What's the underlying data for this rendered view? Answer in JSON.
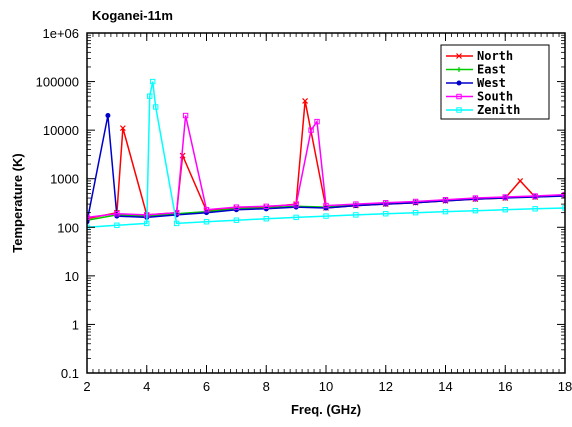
{
  "chart_data": {
    "type": "line",
    "title": "Koganei-11m",
    "xlabel": "Freq. (GHz)",
    "ylabel": "Temperature (K)",
    "xlim": [
      2,
      18
    ],
    "ylim": [
      0.1,
      1000000
    ],
    "yscale": "log",
    "x_ticks": [
      "2",
      "4",
      "6",
      "8",
      "10",
      "12",
      "14",
      "16",
      "18"
    ],
    "y_ticks": [
      "0.1",
      "1",
      "10",
      "100",
      "1000",
      "10000",
      "100000",
      "1e+06"
    ],
    "grid": false,
    "legend_position": "top-right",
    "series": [
      {
        "name": "North",
        "color": "#ff0000",
        "marker": "x",
        "x": [
          2.0,
          3.0,
          3.2,
          4.0,
          5.0,
          5.2,
          6.0,
          7.0,
          8.0,
          9.0,
          9.3,
          10.0,
          11.0,
          12.0,
          13.0,
          14.0,
          15.0,
          16.0,
          16.5,
          17.0,
          18.0
        ],
        "values": [
          150,
          200,
          11000,
          180,
          200,
          3000,
          220,
          250,
          260,
          300,
          40000,
          250,
          280,
          300,
          320,
          350,
          380,
          400,
          900,
          420,
          450
        ]
      },
      {
        "name": "East",
        "color": "#00cc00",
        "marker": "+",
        "x": [
          2.0,
          3.0,
          4.0,
          5.0,
          6.0,
          7.0,
          8.0,
          9.0,
          10.0,
          11.0,
          12.0,
          13.0,
          14.0,
          15.0,
          16.0,
          17.0,
          18.0
        ],
        "values": [
          140,
          180,
          170,
          190,
          210,
          240,
          250,
          270,
          260,
          290,
          310,
          330,
          360,
          390,
          410,
          430,
          460
        ]
      },
      {
        "name": "West",
        "color": "#0000cc",
        "marker": "circle",
        "x": [
          2.0,
          2.7,
          3.0,
          4.0,
          5.0,
          6.0,
          7.0,
          8.0,
          9.0,
          10.0,
          11.0,
          12.0,
          13.0,
          14.0,
          15.0,
          16.0,
          17.0,
          18.0
        ],
        "values": [
          130,
          20000,
          170,
          160,
          180,
          200,
          230,
          240,
          260,
          250,
          280,
          300,
          320,
          350,
          380,
          400,
          420,
          440
        ]
      },
      {
        "name": "South",
        "color": "#ff00ff",
        "marker": "square",
        "x": [
          2.0,
          3.0,
          4.0,
          5.0,
          5.3,
          6.0,
          7.0,
          8.0,
          9.0,
          9.5,
          9.7,
          10.0,
          11.0,
          12.0,
          13.0,
          14.0,
          15.0,
          16.0,
          17.0,
          18.0
        ],
        "values": [
          160,
          190,
          180,
          200,
          20000,
          230,
          260,
          270,
          290,
          10000,
          15000,
          280,
          300,
          320,
          340,
          370,
          400,
          420,
          440,
          470
        ]
      },
      {
        "name": "Zenith",
        "color": "#00ffff",
        "marker": "square",
        "x": [
          2.0,
          3.0,
          4.0,
          4.1,
          4.2,
          4.3,
          5.0,
          6.0,
          7.0,
          8.0,
          9.0,
          10.0,
          11.0,
          12.0,
          13.0,
          14.0,
          15.0,
          16.0,
          17.0,
          18.0
        ],
        "values": [
          100,
          110,
          120,
          50000,
          100000,
          30000,
          120,
          130,
          140,
          150,
          160,
          170,
          180,
          190,
          200,
          210,
          220,
          230,
          240,
          250
        ]
      }
    ]
  }
}
